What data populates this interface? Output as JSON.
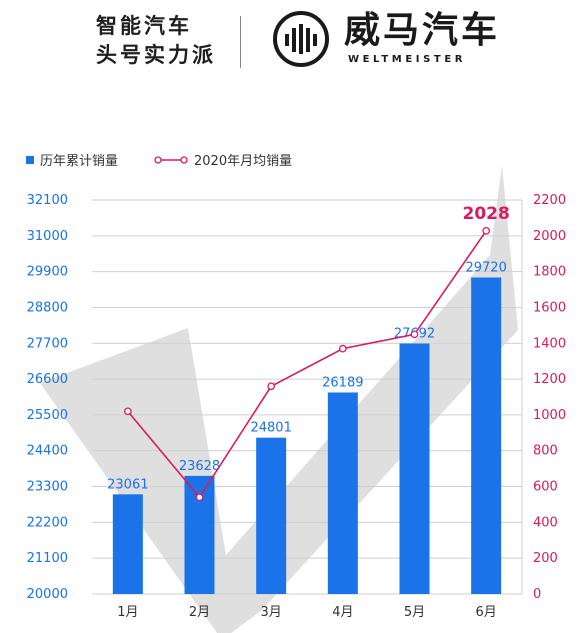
{
  "header": {
    "tagline_line1": "智能汽车",
    "tagline_line2": "头号实力派",
    "brand_cn": "威马汽车",
    "brand_en": "WELTMEISTER",
    "logo_icon": "weltmeister-logo-icon"
  },
  "colors": {
    "bar": "#1a73e8",
    "line": "#d81b60",
    "left_axis_text": "#1a73e8",
    "right_axis_text": "#d81b60",
    "check_shape": "#d9d9d9",
    "grid": "#cfcfcf"
  },
  "chart_data": {
    "type": "bar",
    "title": "",
    "categories": [
      "1月",
      "2月",
      "3月",
      "4月",
      "5月",
      "6月"
    ],
    "legend_position": "top-left",
    "grid": true,
    "series": [
      {
        "name": "历年累计销量",
        "type": "bar",
        "axis": "left",
        "values": [
          23061,
          23628,
          24801,
          26189,
          27692,
          29720
        ],
        "data_labels": [
          "23061",
          "23628",
          "24801",
          "26189",
          "27692",
          "29720"
        ]
      },
      {
        "name": "2020年月均销量",
        "type": "line",
        "axis": "right",
        "values": [
          1020,
          540,
          1160,
          1370,
          1450,
          2028
        ],
        "highlight_label": "2028"
      }
    ],
    "left_axis": {
      "ylim": [
        20000,
        32100
      ],
      "ticks": [
        "20000",
        "21100",
        "22200",
        "23300",
        "24400",
        "25500",
        "26600",
        "27700",
        "28800",
        "29900",
        "31000",
        "32100"
      ]
    },
    "right_axis": {
      "ylim": [
        0,
        2200
      ],
      "ticks": [
        "0",
        "200",
        "400",
        "600",
        "800",
        "1000",
        "1200",
        "1400",
        "1600",
        "1800",
        "2000",
        "2200"
      ]
    }
  }
}
